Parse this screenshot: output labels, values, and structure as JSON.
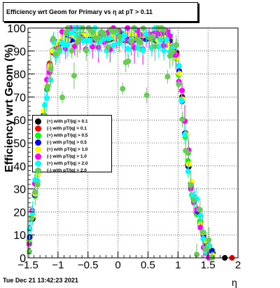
{
  "title": "Efficiency wrt Geom for Primary vs   η at pT > 0.11",
  "footer_date": "Tue Dec 21 13:42:23 2021",
  "chart_data": {
    "type": "scatter",
    "xlabel": "η",
    "ylabel": "Efficiency wrt Geom (%)",
    "xlim": [
      -1.5,
      2
    ],
    "ylim": [
      0,
      100
    ],
    "x_ticks": [
      "−1.5",
      "−1",
      "−0.5",
      "0",
      "0.5",
      "1",
      "1.5",
      "2"
    ],
    "y_ticks": [
      "0",
      "10",
      "20",
      "30",
      "40",
      "50",
      "60",
      "70",
      "80",
      "90",
      "100"
    ],
    "grid": true,
    "legend_position": "left-middle",
    "series": [
      {
        "name": "(+) with pT/|q| > 0.1",
        "color": "#000000"
      },
      {
        "name": "(-) with pT/|q| > 0.1",
        "color": "#ff0000"
      },
      {
        "name": "(+) with pT/|q| > 0.5",
        "color": "#00ff00"
      },
      {
        "name": "(-) with pT/|q| > 0.5",
        "color": "#0000ff"
      },
      {
        "name": "(+) with pT/|q| > 1.0",
        "color": "#ffff00"
      },
      {
        "name": "(-) with pT/|q| > 1.0",
        "color": "#ff00ff"
      },
      {
        "name": "(+) with pT/|q| > 2.0",
        "color": "#00ffff"
      },
      {
        "name": "(-) with pT/|q| > 2.0",
        "color": "#66cc55"
      }
    ],
    "profile": {
      "x": [
        -1.5,
        -1.45,
        -1.4,
        -1.35,
        -1.3,
        -1.25,
        -1.2,
        -1.15,
        -1.1,
        -1.05,
        -1.0,
        -0.9,
        -0.8,
        -0.5,
        0.0,
        0.5,
        0.7,
        0.8,
        0.85,
        0.9,
        0.95,
        1.0,
        1.05,
        1.1,
        1.15,
        1.2,
        1.25,
        1.3,
        1.35,
        1.4,
        1.45,
        1.5,
        1.55,
        1.6
      ],
      "y": [
        5,
        12,
        25,
        33,
        45,
        58,
        70,
        80,
        88,
        92,
        94,
        95,
        96,
        96,
        96,
        96,
        96,
        95,
        94,
        92,
        90,
        85,
        75,
        60,
        45,
        35,
        28,
        22,
        18,
        12,
        8,
        5,
        3,
        1
      ]
    },
    "isolated_points": [
      {
        "x": 1.78,
        "y": 0,
        "color": "#000000"
      },
      {
        "x": 1.9,
        "y": 0,
        "color": "#ff0000"
      }
    ]
  }
}
